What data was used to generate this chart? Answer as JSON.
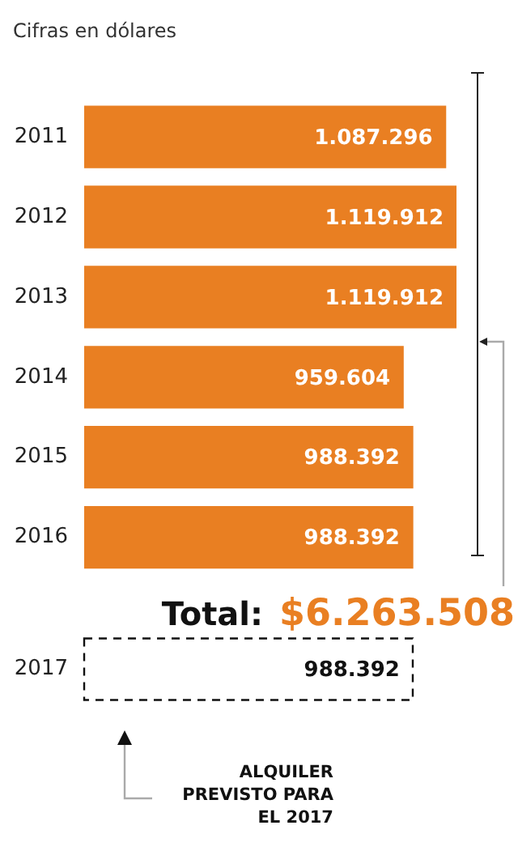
{
  "chart_data": {
    "type": "bar",
    "orientation": "horizontal",
    "title": "Cifras en dólares",
    "categories": [
      "2011",
      "2012",
      "2013",
      "2014",
      "2015",
      "2016",
      "2017"
    ],
    "series": [
      {
        "color": "#e97f22",
        "values": [
          1087296,
          1119912,
          1119912,
          959604,
          988392,
          988392,
          null
        ],
        "value_labels": [
          "1.087.296",
          "1.119.912",
          "1.119.912",
          "959.604",
          "988.392",
          "988.392",
          null
        ]
      },
      {
        "color": "#ffffff",
        "line_style": "dashed",
        "values": [
          null,
          null,
          null,
          null,
          null,
          null,
          988392
        ],
        "value_labels": [
          null,
          null,
          null,
          null,
          null,
          null,
          "988.392"
        ]
      }
    ],
    "annotations": [
      "Total:",
      "$6.263.508",
      "ALQUILER PREVISTO PARA EL 2017"
    ]
  }
}
